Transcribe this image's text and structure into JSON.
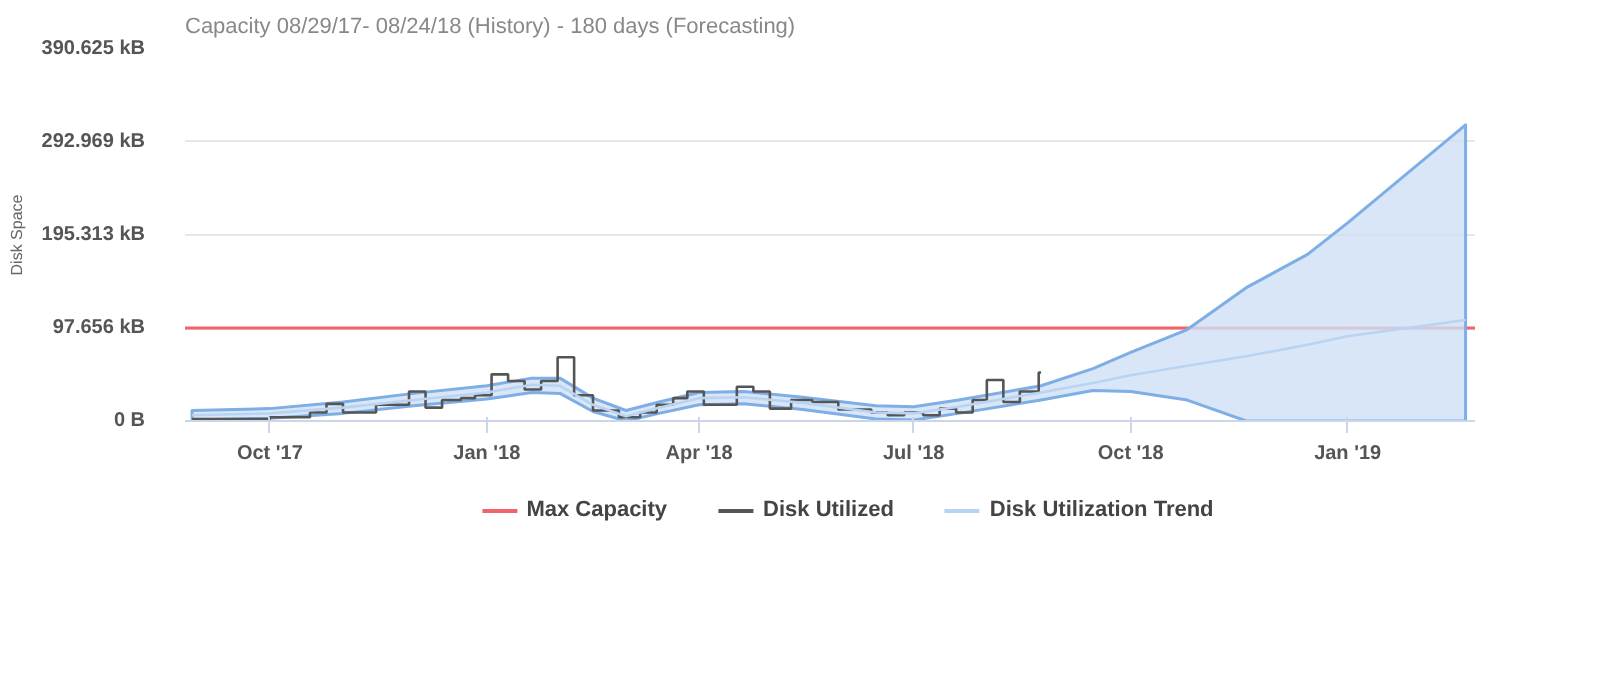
{
  "chart_data": {
    "type": "line",
    "title": "Capacity 08/29/17- 08/24/18 (History) - 180 days (Forecasting)",
    "ylabel": "Disk Space",
    "xlim": [
      "2017-08-26",
      "2019-02-24"
    ],
    "xticks": [
      {
        "value": "2017-10-01",
        "label": "Oct '17"
      },
      {
        "value": "2018-01-01",
        "label": "Jan '18"
      },
      {
        "value": "2018-04-01",
        "label": "Apr '18"
      },
      {
        "value": "2018-07-01",
        "label": "Jul '18"
      },
      {
        "value": "2018-10-01",
        "label": "Oct '18"
      },
      {
        "value": "2019-01-01",
        "label": "Jan '19"
      }
    ],
    "ylim": [
      0,
      390.625
    ],
    "yticks": [
      {
        "value": 0,
        "label": "0 B"
      },
      {
        "value": 97.656,
        "label": "97.656 kB"
      },
      {
        "value": 195.313,
        "label": "195.313 kB"
      },
      {
        "value": 292.969,
        "label": "292.969 kB"
      },
      {
        "value": 390.625,
        "label": "390.625 kB"
      }
    ],
    "grid": "y",
    "legend": "bottom",
    "ref_lines": [
      {
        "axis": "y",
        "value": 97.656,
        "label": "Max Capacity",
        "color": "#f0646a"
      }
    ],
    "series": [
      {
        "name": "Disk Utilized",
        "type": "step",
        "color": "#555555",
        "x": [
          "2017-08-29",
          "2017-10-01",
          "2017-10-18",
          "2017-10-25",
          "2017-11-01",
          "2017-11-15",
          "2017-11-29",
          "2017-12-06",
          "2017-12-13",
          "2017-12-21",
          "2017-12-27",
          "2018-01-03",
          "2018-01-10",
          "2018-01-17",
          "2018-01-24",
          "2018-01-31",
          "2018-02-07",
          "2018-02-15",
          "2018-02-26",
          "2018-03-07",
          "2018-03-14",
          "2018-03-21",
          "2018-03-27",
          "2018-04-03",
          "2018-04-17",
          "2018-04-24",
          "2018-05-01",
          "2018-05-10",
          "2018-05-19",
          "2018-05-30",
          "2018-06-13",
          "2018-06-20",
          "2018-06-27",
          "2018-07-05",
          "2018-07-12",
          "2018-07-19",
          "2018-07-26",
          "2018-08-01",
          "2018-08-08",
          "2018-08-15",
          "2018-08-23",
          "2018-08-24"
        ],
        "values": [
          2,
          4,
          9,
          18,
          9,
          17,
          31,
          14,
          22,
          24,
          27,
          49,
          42,
          33,
          42,
          67,
          27,
          11,
          4,
          9,
          17,
          24,
          31,
          17,
          36,
          31,
          13,
          22,
          20,
          12,
          9,
          6,
          9,
          6,
          13,
          9,
          22,
          43,
          20,
          31,
          51,
          51
        ]
      },
      {
        "name": "Disk Utilization Trend",
        "color": "#b9d3f3",
        "x": [
          "2017-08-29",
          "2017-10-01",
          "2017-11-01",
          "2017-12-01",
          "2018-01-01",
          "2018-01-20",
          "2018-02-01",
          "2018-02-15",
          "2018-03-01",
          "2018-03-15",
          "2018-04-01",
          "2018-04-20",
          "2018-05-15",
          "2018-06-15",
          "2018-07-01",
          "2018-07-20",
          "2018-08-24",
          "2018-09-15",
          "2018-10-01",
          "2018-10-25",
          "2018-11-19",
          "2018-12-15",
          "2019-01-01",
          "2019-02-20"
        ],
        "values": [
          6,
          8,
          14,
          22,
          30,
          38,
          37,
          17,
          5,
          14,
          24,
          25,
          19,
          9,
          8,
          15,
          30,
          40,
          48,
          58,
          68,
          80,
          89,
          106
        ],
        "lower": [
          1,
          3,
          8,
          16,
          23,
          30,
          29,
          10,
          0,
          8,
          17,
          18,
          12,
          2,
          1,
          8,
          22,
          32,
          31,
          22,
          0,
          0,
          0,
          0
        ],
        "upper": [
          11,
          13,
          20,
          29,
          37,
          45,
          45,
          24,
          11,
          20,
          30,
          31,
          25,
          16,
          15,
          22,
          37,
          55,
          72,
          96,
          140,
          175,
          208,
          311
        ]
      }
    ]
  }
}
